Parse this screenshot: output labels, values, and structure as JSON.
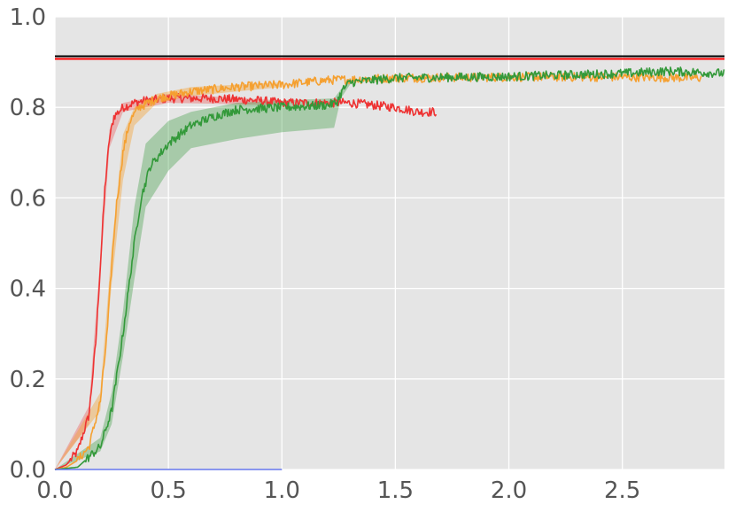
{
  "chart_data": {
    "type": "line",
    "title": "",
    "xlabel": "",
    "ylabel": "",
    "xlim": [
      0,
      2.95
    ],
    "ylim": [
      0,
      1.0
    ],
    "grid": true,
    "x_ticks": [
      0.0,
      0.5,
      1.0,
      1.5,
      2.0,
      2.5
    ],
    "x_tick_labels": [
      "0.0",
      "0.5",
      "1.0",
      "1.5",
      "2.0",
      "2.5"
    ],
    "y_ticks": [
      0.0,
      0.2,
      0.4,
      0.6,
      0.8,
      1.0
    ],
    "y_tick_labels": [
      "0.0",
      "0.2",
      "0.4",
      "0.6",
      "0.8",
      "1.0"
    ],
    "reference_lines": [
      {
        "y": 0.913,
        "color": "#000000"
      },
      {
        "y": 0.907,
        "color": "#ff0000"
      }
    ],
    "series": [
      {
        "color": "#ee3333",
        "band_opacity": 0.3,
        "points": [
          [
            0.0,
            0.0
          ],
          [
            0.05,
            0.01
          ],
          [
            0.1,
            0.04
          ],
          [
            0.15,
            0.12
          ],
          [
            0.18,
            0.28
          ],
          [
            0.2,
            0.45
          ],
          [
            0.22,
            0.62
          ],
          [
            0.24,
            0.73
          ],
          [
            0.26,
            0.78
          ],
          [
            0.3,
            0.8
          ],
          [
            0.35,
            0.81
          ],
          [
            0.4,
            0.815
          ],
          [
            0.5,
            0.82
          ],
          [
            0.7,
            0.82
          ],
          [
            0.9,
            0.815
          ],
          [
            1.0,
            0.81
          ],
          [
            1.1,
            0.81
          ],
          [
            1.2,
            0.81
          ],
          [
            1.3,
            0.81
          ],
          [
            1.4,
            0.805
          ],
          [
            1.5,
            0.8
          ],
          [
            1.6,
            0.79
          ],
          [
            1.68,
            0.79
          ]
        ],
        "band": [
          [
            0.0,
            0.0,
            0.0
          ],
          [
            0.15,
            0.1,
            0.14
          ],
          [
            0.2,
            0.43,
            0.47
          ],
          [
            0.24,
            0.71,
            0.75
          ],
          [
            0.3,
            0.79,
            0.81
          ],
          [
            0.5,
            0.81,
            0.83
          ],
          [
            1.0,
            0.805,
            0.815
          ]
        ]
      },
      {
        "color": "#f5a030",
        "band_opacity": 0.4,
        "points": [
          [
            0.0,
            0.0
          ],
          [
            0.05,
            0.005
          ],
          [
            0.1,
            0.02
          ],
          [
            0.15,
            0.05
          ],
          [
            0.2,
            0.15
          ],
          [
            0.23,
            0.3
          ],
          [
            0.25,
            0.45
          ],
          [
            0.27,
            0.58
          ],
          [
            0.3,
            0.7
          ],
          [
            0.33,
            0.77
          ],
          [
            0.37,
            0.8
          ],
          [
            0.45,
            0.82
          ],
          [
            0.6,
            0.835
          ],
          [
            0.8,
            0.845
          ],
          [
            1.0,
            0.85
          ],
          [
            1.2,
            0.86
          ],
          [
            1.5,
            0.865
          ],
          [
            2.0,
            0.867
          ],
          [
            2.5,
            0.867
          ],
          [
            2.85,
            0.865
          ]
        ],
        "band": [
          [
            0.0,
            0.0,
            0.0
          ],
          [
            0.2,
            0.13,
            0.17
          ],
          [
            0.25,
            0.41,
            0.49
          ],
          [
            0.3,
            0.64,
            0.74
          ],
          [
            0.35,
            0.76,
            0.8
          ],
          [
            0.45,
            0.81,
            0.83
          ],
          [
            0.6,
            0.825,
            0.845
          ],
          [
            1.0,
            0.845,
            0.855
          ]
        ]
      },
      {
        "color": "#33993a",
        "band_opacity": 0.35,
        "points": [
          [
            0.0,
            0.0
          ],
          [
            0.1,
            0.005
          ],
          [
            0.2,
            0.05
          ],
          [
            0.25,
            0.13
          ],
          [
            0.3,
            0.3
          ],
          [
            0.35,
            0.5
          ],
          [
            0.38,
            0.6
          ],
          [
            0.42,
            0.67
          ],
          [
            0.5,
            0.72
          ],
          [
            0.6,
            0.76
          ],
          [
            0.7,
            0.78
          ],
          [
            0.8,
            0.795
          ],
          [
            1.0,
            0.8
          ],
          [
            1.2,
            0.805
          ],
          [
            1.24,
            0.81
          ],
          [
            1.27,
            0.84
          ],
          [
            1.3,
            0.855
          ],
          [
            1.5,
            0.865
          ],
          [
            2.0,
            0.868
          ],
          [
            2.5,
            0.875
          ],
          [
            2.7,
            0.88
          ],
          [
            2.95,
            0.875
          ]
        ],
        "band": [
          [
            0.0,
            0.0,
            0.0
          ],
          [
            0.2,
            0.04,
            0.07
          ],
          [
            0.25,
            0.1,
            0.17
          ],
          [
            0.3,
            0.25,
            0.35
          ],
          [
            0.35,
            0.42,
            0.58
          ],
          [
            0.4,
            0.58,
            0.72
          ],
          [
            0.5,
            0.66,
            0.77
          ],
          [
            0.6,
            0.71,
            0.79
          ],
          [
            0.8,
            0.73,
            0.81
          ],
          [
            1.0,
            0.745,
            0.815
          ],
          [
            1.23,
            0.755,
            0.82
          ],
          [
            1.26,
            0.82,
            0.84
          ],
          [
            1.3,
            0.85,
            0.86
          ]
        ]
      },
      {
        "color": "#6677ee",
        "band_opacity": 0,
        "points": [
          [
            0.0,
            0.0
          ],
          [
            1.0,
            0.0
          ]
        ],
        "band": []
      }
    ]
  }
}
